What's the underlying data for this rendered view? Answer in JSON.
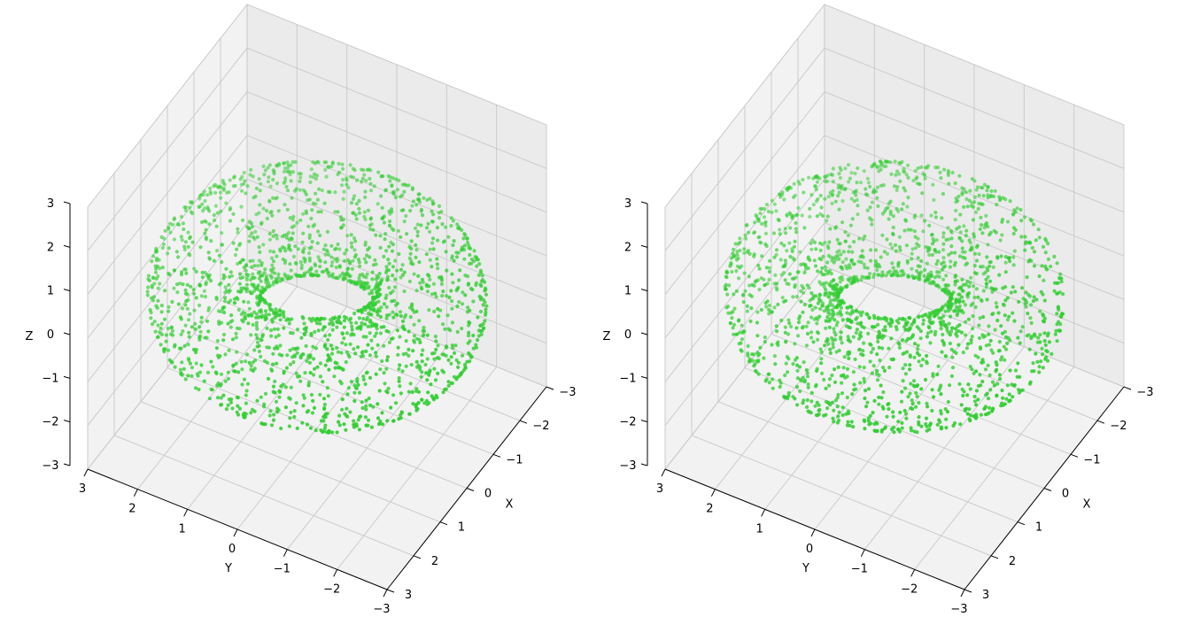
{
  "chart_data": [
    {
      "type": "scatter3d",
      "title": "",
      "shape": "torus",
      "major_radius": 2.0,
      "minor_radius": 1.0,
      "point_count": 2000,
      "point_color": "#32cd32",
      "xlabel": "X",
      "ylabel": "Y",
      "zlabel": "Z",
      "xlim": [
        -3,
        3
      ],
      "ylim": [
        -3,
        3
      ],
      "zlim": [
        -3,
        3
      ],
      "xticks": [
        "−3",
        "−2",
        "−1",
        "0",
        "1",
        "2",
        "3"
      ],
      "yticks": [
        "−3",
        "−2",
        "−1",
        "0",
        "1",
        "2",
        "3"
      ],
      "zticks": [
        "−3",
        "−2",
        "−1",
        "0",
        "1",
        "2",
        "3"
      ],
      "grid": true
    },
    {
      "type": "scatter3d",
      "title": "",
      "shape": "torus",
      "major_radius": 2.0,
      "minor_radius": 1.0,
      "point_count": 2000,
      "point_color": "#32cd32",
      "xlabel": "X",
      "ylabel": "Y",
      "zlabel": "Z",
      "xlim": [
        -3,
        3
      ],
      "ylim": [
        -3,
        3
      ],
      "zlim": [
        -3,
        3
      ],
      "xticks": [
        "−3",
        "−2",
        "−1",
        "0",
        "1",
        "2",
        "3"
      ],
      "yticks": [
        "−3",
        "−2",
        "−1",
        "0",
        "1",
        "2",
        "3"
      ],
      "zticks": [
        "−3",
        "−2",
        "−1",
        "0",
        "1",
        "2",
        "3"
      ],
      "grid": true
    }
  ]
}
